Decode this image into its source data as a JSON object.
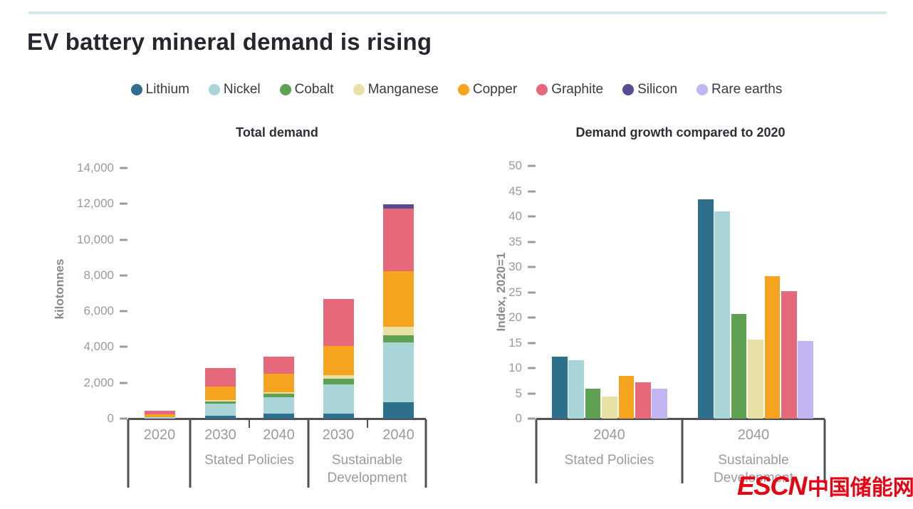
{
  "page": {
    "title": "EV battery mineral demand is rising"
  },
  "watermark": {
    "latin": "ESCN",
    "cjk": "中国储能网"
  },
  "colors": {
    "lithium": "#2e6f8c",
    "nickel": "#a9d4d8",
    "cobalt": "#5fa153",
    "manganese": "#e9e0a5",
    "copper": "#f6a41f",
    "graphite": "#e5697a",
    "silicon": "#5a4a96",
    "rare_earths": "#c3b4f2",
    "axis": "#515157",
    "tick_text": "#9b9b9b",
    "accent_rule": "#d6e9ea",
    "watermark_red": "#e60012"
  },
  "legend": {
    "items": [
      {
        "label": "Lithium",
        "color_key": "lithium"
      },
      {
        "label": "Nickel",
        "color_key": "nickel"
      },
      {
        "label": "Cobalt",
        "color_key": "cobalt"
      },
      {
        "label": "Manganese",
        "color_key": "manganese"
      },
      {
        "label": "Copper",
        "color_key": "copper"
      },
      {
        "label": "Graphite",
        "color_key": "graphite"
      },
      {
        "label": "Silicon",
        "color_key": "silicon"
      },
      {
        "label": "Rare earths",
        "color_key": "rare_earths"
      }
    ]
  },
  "chart_data": [
    {
      "type": "bar",
      "variant": "stacked",
      "title": "Total demand",
      "ylabel": "kilotonnes",
      "y_axis": {
        "min": 0,
        "max": 14000,
        "step": 2000,
        "format": "comma"
      },
      "grid": false,
      "groups": [
        {
          "label": "",
          "years": [
            "2020"
          ]
        },
        {
          "label": "Stated Policies",
          "years": [
            "2030",
            "2040"
          ]
        },
        {
          "label": "Sustainable Development",
          "years": [
            "2030",
            "2040"
          ]
        }
      ],
      "categories": [
        "2020",
        "2030 Stated Policies",
        "2040 Stated Policies",
        "2030 Sustainable Development",
        "2040 Sustainable Development"
      ],
      "series": [
        {
          "name": "Lithium",
          "color_key": "lithium",
          "values": [
            10,
            150,
            270,
            280,
            900
          ]
        },
        {
          "name": "Nickel",
          "color_key": "nickel",
          "values": [
            60,
            700,
            910,
            1620,
            3340
          ]
        },
        {
          "name": "Cobalt",
          "color_key": "cobalt",
          "values": [
            15,
            120,
            200,
            330,
            400
          ]
        },
        {
          "name": "Manganese",
          "color_key": "manganese",
          "values": [
            15,
            80,
            90,
            200,
            490
          ]
        },
        {
          "name": "Copper",
          "color_key": "copper",
          "values": [
            150,
            760,
            1020,
            1640,
            3100
          ]
        },
        {
          "name": "Graphite",
          "color_key": "graphite",
          "values": [
            180,
            1020,
            960,
            2600,
            3500
          ]
        },
        {
          "name": "Silicon",
          "color_key": "silicon",
          "values": [
            0,
            0,
            0,
            0,
            230
          ]
        },
        {
          "name": "Rare earths",
          "color_key": "rare_earths",
          "values": [
            0,
            0,
            0,
            0,
            0
          ]
        }
      ]
    },
    {
      "type": "bar",
      "variant": "grouped",
      "title": "Demand growth compared to 2020",
      "ylabel": "Index, 2020=1",
      "y_axis": {
        "min": 0,
        "max": 50,
        "step": 5,
        "format": "plain"
      },
      "grid": false,
      "groups": [
        {
          "label": "Stated Policies",
          "years": [
            "2040"
          ]
        },
        {
          "label": "Sustainable Development",
          "years": [
            "2040"
          ]
        }
      ],
      "categories": [
        "2040 Stated Policies",
        "2040 Sustainable Development"
      ],
      "series": [
        {
          "name": "Lithium",
          "color_key": "lithium",
          "values": [
            12.3,
            43.4
          ]
        },
        {
          "name": "Nickel",
          "color_key": "nickel",
          "values": [
            11.5,
            41.0
          ]
        },
        {
          "name": "Cobalt",
          "color_key": "cobalt",
          "values": [
            5.9,
            20.7
          ]
        },
        {
          "name": "Manganese",
          "color_key": "manganese",
          "values": [
            4.3,
            15.7
          ]
        },
        {
          "name": "Copper",
          "color_key": "copper",
          "values": [
            8.5,
            28.2
          ]
        },
        {
          "name": "Graphite",
          "color_key": "graphite",
          "values": [
            7.2,
            25.2
          ]
        },
        {
          "name": "Rare earths",
          "color_key": "rare_earths",
          "values": [
            5.9,
            15.3
          ]
        }
      ]
    }
  ]
}
